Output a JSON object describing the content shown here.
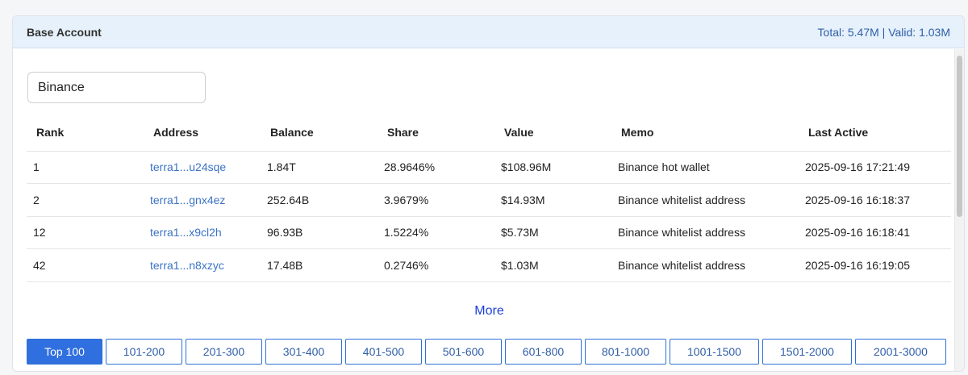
{
  "header": {
    "title": "Base Account",
    "summary": "Total: 5.47M | Valid: 1.03M"
  },
  "search": {
    "value": "Binance"
  },
  "table": {
    "columns": [
      "Rank",
      "Address",
      "Balance",
      "Share",
      "Value",
      "Memo",
      "Last Active"
    ],
    "rows": [
      {
        "rank": "1",
        "address": "terra1...u24sqe",
        "balance": "1.84T",
        "share": "28.9646%",
        "value": "$108.96M",
        "memo": "Binance hot wallet",
        "last_active": "2025-09-16 17:21:49"
      },
      {
        "rank": "2",
        "address": "terra1...gnx4ez",
        "balance": "252.64B",
        "share": "3.9679%",
        "value": "$14.93M",
        "memo": "Binance whitelist address",
        "last_active": "2025-09-16 16:18:37"
      },
      {
        "rank": "12",
        "address": "terra1...x9cl2h",
        "balance": "96.93B",
        "share": "1.5224%",
        "value": "$5.73M",
        "memo": "Binance whitelist address",
        "last_active": "2025-09-16 16:18:41"
      },
      {
        "rank": "42",
        "address": "terra1...n8xzyc",
        "balance": "17.48B",
        "share": "0.2746%",
        "value": "$1.03M",
        "memo": "Binance whitelist address",
        "last_active": "2025-09-16 16:19:05"
      }
    ]
  },
  "more_label": "More",
  "pager": {
    "active_index": 0,
    "buttons": [
      "Top 100",
      "101-200",
      "201-300",
      "301-400",
      "401-500",
      "501-600",
      "601-800",
      "801-1000",
      "1001-1500",
      "1501-2000",
      "2001-3000"
    ]
  }
}
